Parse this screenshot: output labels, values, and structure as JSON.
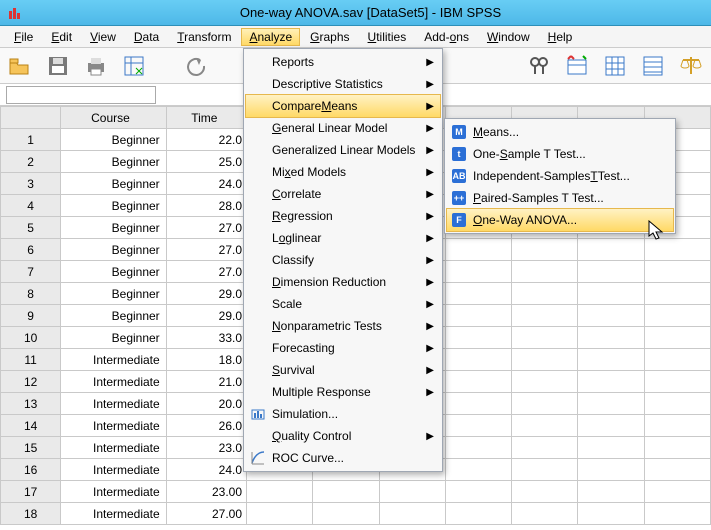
{
  "window": {
    "title": "One-way ANOVA.sav [DataSet5] - IBM SPSS"
  },
  "menubar": {
    "items": [
      {
        "label": "File",
        "u": "F"
      },
      {
        "label": "Edit",
        "u": "E"
      },
      {
        "label": "View",
        "u": "V"
      },
      {
        "label": "Data",
        "u": "D"
      },
      {
        "label": "Transform",
        "u": "T"
      },
      {
        "label": "Analyze",
        "u": "A",
        "active": true
      },
      {
        "label": "Graphs",
        "u": "G"
      },
      {
        "label": "Utilities",
        "u": "U"
      },
      {
        "label": "Add-ons",
        "u": "o"
      },
      {
        "label": "Window",
        "u": "W"
      },
      {
        "label": "Help",
        "u": "H"
      }
    ]
  },
  "analyze_menu": [
    {
      "label": "Reports",
      "u": "",
      "sub": true
    },
    {
      "label": "Descriptive Statistics",
      "u": "E",
      "sub": true
    },
    {
      "label": "Compare Means",
      "u": "M",
      "sub": true,
      "selected": true
    },
    {
      "label": "General Linear Model",
      "u": "G",
      "sub": true
    },
    {
      "label": "Generalized Linear Models",
      "u": "Z",
      "sub": true
    },
    {
      "label": "Mixed Models",
      "u": "x",
      "sub": true
    },
    {
      "label": "Correlate",
      "u": "C",
      "sub": true
    },
    {
      "label": "Regression",
      "u": "R",
      "sub": true
    },
    {
      "label": "Loglinear",
      "u": "o",
      "sub": true
    },
    {
      "label": "Classify",
      "u": "F",
      "sub": true
    },
    {
      "label": "Dimension Reduction",
      "u": "D",
      "sub": true
    },
    {
      "label": "Scale",
      "u": "A",
      "sub": true
    },
    {
      "label": "Nonparametric Tests",
      "u": "N",
      "sub": true
    },
    {
      "label": "Forecasting",
      "u": "T",
      "sub": true
    },
    {
      "label": "Survival",
      "u": "S",
      "sub": true
    },
    {
      "label": "Multiple Response",
      "u": "U",
      "sub": true
    },
    {
      "label": "Simulation...",
      "u": "",
      "sub": false,
      "icon": "sim"
    },
    {
      "label": "Quality Control",
      "u": "Q",
      "sub": true
    },
    {
      "label": "ROC Curve...",
      "u": "V",
      "sub": false,
      "icon": "roc"
    }
  ],
  "compare_menu": [
    {
      "label": "Means...",
      "u": "M",
      "color": "#2b6fd6",
      "glyph": "M"
    },
    {
      "label": "One-Sample T Test...",
      "u": "S",
      "color": "#2b6fd6",
      "glyph": "t"
    },
    {
      "label": "Independent-Samples T Test...",
      "u": "T",
      "color": "#2b6fd6",
      "glyph": "AB"
    },
    {
      "label": "Paired-Samples T Test...",
      "u": "P",
      "color": "#2b6fd6",
      "glyph": "++"
    },
    {
      "label": "One-Way ANOVA...",
      "u": "O",
      "color": "#2b6fd6",
      "glyph": "F",
      "selected": true
    }
  ],
  "columns": [
    "Course",
    "Time"
  ],
  "rows": [
    {
      "n": 1,
      "course": "Beginner",
      "time": "22.0"
    },
    {
      "n": 2,
      "course": "Beginner",
      "time": "25.0"
    },
    {
      "n": 3,
      "course": "Beginner",
      "time": "24.0"
    },
    {
      "n": 4,
      "course": "Beginner",
      "time": "28.0"
    },
    {
      "n": 5,
      "course": "Beginner",
      "time": "27.0"
    },
    {
      "n": 6,
      "course": "Beginner",
      "time": "27.0"
    },
    {
      "n": 7,
      "course": "Beginner",
      "time": "27.0"
    },
    {
      "n": 8,
      "course": "Beginner",
      "time": "29.0"
    },
    {
      "n": 9,
      "course": "Beginner",
      "time": "29.0"
    },
    {
      "n": 10,
      "course": "Beginner",
      "time": "33.0"
    },
    {
      "n": 11,
      "course": "Intermediate",
      "time": "18.0"
    },
    {
      "n": 12,
      "course": "Intermediate",
      "time": "21.0"
    },
    {
      "n": 13,
      "course": "Intermediate",
      "time": "20.0"
    },
    {
      "n": 14,
      "course": "Intermediate",
      "time": "26.0"
    },
    {
      "n": 15,
      "course": "Intermediate",
      "time": "23.0"
    },
    {
      "n": 16,
      "course": "Intermediate",
      "time": "24.0"
    },
    {
      "n": 17,
      "course": "Intermediate",
      "time": "23.00"
    },
    {
      "n": 18,
      "course": "Intermediate",
      "time": "27.00"
    }
  ],
  "colors": {
    "title_grad_a": "#68cdf4",
    "title_grad_b": "#4db8e8",
    "highlight_a": "#fff2c4",
    "highlight_b": "#ffd966"
  }
}
